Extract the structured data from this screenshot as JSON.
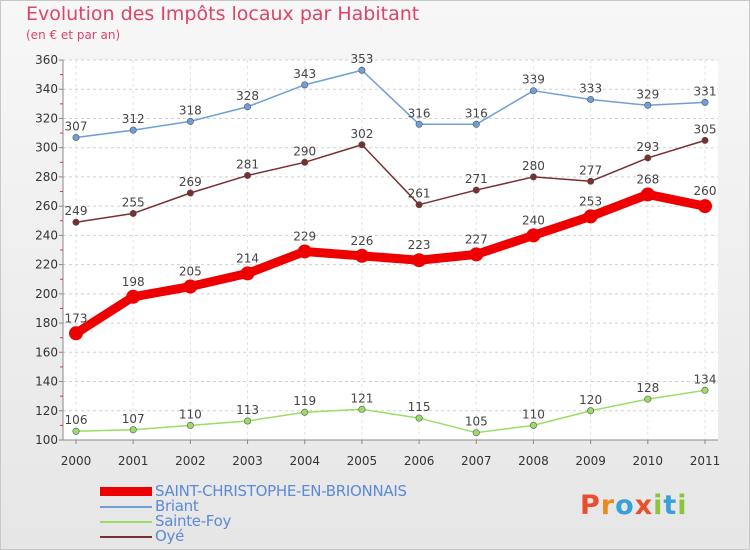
{
  "title": "Evolution des Impôts locaux par Habitant",
  "subtitle": "(en € et par an)",
  "logo": {
    "text": "Proxiti",
    "colors": [
      "#e8502c",
      "#e88a1e",
      "#3aa0d8",
      "#e8502c",
      "#8cc43c",
      "#3aa0d8",
      "#8cc43c"
    ]
  },
  "chart_data": {
    "type": "line",
    "title": "Evolution des Impôts locaux par Habitant",
    "ylabel": "(en € et par an)",
    "xlabel": "",
    "categories": [
      "2000",
      "2001",
      "2002",
      "2003",
      "2004",
      "2005",
      "2006",
      "2007",
      "2008",
      "2009",
      "2010",
      "2011"
    ],
    "ylim": [
      100,
      360
    ],
    "yticks": [
      100,
      120,
      140,
      160,
      180,
      200,
      220,
      240,
      260,
      280,
      300,
      320,
      340,
      360
    ],
    "grid": "horizontal-dashed",
    "series": [
      {
        "name": "SAINT-CHRISTOPHE-EN-BRIONNAIS",
        "color": "#ee0000",
        "values": [
          173,
          198,
          205,
          214,
          229,
          226,
          223,
          227,
          240,
          253,
          268,
          260
        ]
      },
      {
        "name": "Briant",
        "color": "#6f9fd8",
        "values": [
          307,
          312,
          318,
          328,
          343,
          353,
          316,
          316,
          339,
          333,
          329,
          331
        ]
      },
      {
        "name": "Sainte-Foy",
        "color": "#99dd66",
        "values": [
          106,
          107,
          110,
          113,
          119,
          121,
          115,
          105,
          110,
          120,
          128,
          134
        ]
      },
      {
        "name": "Oyé",
        "color": "#7a2e2e",
        "values": [
          249,
          255,
          269,
          281,
          290,
          302,
          261,
          271,
          280,
          277,
          293,
          305
        ]
      }
    ]
  }
}
